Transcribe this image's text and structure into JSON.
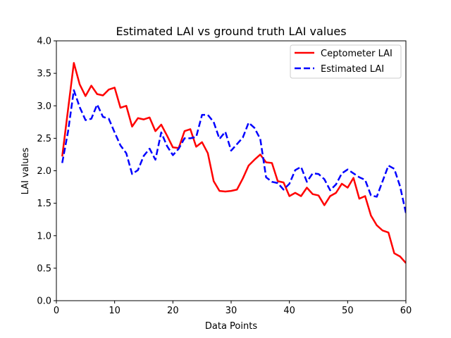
{
  "chart_data": {
    "type": "line",
    "title": "Estimated LAI vs ground truth LAI values",
    "xlabel": "Data Points",
    "ylabel": "LAI values",
    "xlim": [
      0,
      60
    ],
    "ylim": [
      0.0,
      4.0
    ],
    "xticks": [
      "0",
      "10",
      "20",
      "30",
      "40",
      "50",
      "60"
    ],
    "yticks": [
      "0.0",
      "0.5",
      "1.0",
      "1.5",
      "2.0",
      "2.5",
      "3.0",
      "3.5",
      "4.0"
    ],
    "grid": false,
    "legend_position": "top-right",
    "x": [
      1,
      2,
      3,
      4,
      5,
      6,
      7,
      8,
      9,
      10,
      11,
      12,
      13,
      14,
      15,
      16,
      17,
      18,
      19,
      20,
      21,
      22,
      23,
      24,
      25,
      26,
      27,
      28,
      29,
      30,
      31,
      32,
      33,
      34,
      35,
      36,
      37,
      38,
      39,
      40,
      41,
      42,
      43,
      44,
      45,
      46,
      47,
      48,
      49,
      50,
      51,
      52,
      53,
      54,
      55,
      56,
      57,
      58,
      59,
      60
    ],
    "series": [
      {
        "name": "Ceptometer LAI",
        "color": "#ff0000",
        "style": "solid",
        "values": [
          2.22,
          2.94,
          3.66,
          3.33,
          3.15,
          3.31,
          3.18,
          3.16,
          3.25,
          3.28,
          2.97,
          3.0,
          2.68,
          2.81,
          2.79,
          2.82,
          2.61,
          2.71,
          2.54,
          2.36,
          2.35,
          2.61,
          2.64,
          2.37,
          2.44,
          2.27,
          1.84,
          1.69,
          1.68,
          1.69,
          1.71,
          1.88,
          2.08,
          2.17,
          2.25,
          2.13,
          2.12,
          1.84,
          1.82,
          1.61,
          1.66,
          1.61,
          1.74,
          1.64,
          1.62,
          1.47,
          1.61,
          1.66,
          1.8,
          1.74,
          1.89,
          1.57,
          1.61,
          1.31,
          1.16,
          1.08,
          1.05,
          0.73,
          0.68,
          0.58
        ]
      },
      {
        "name": "Estimated LAI",
        "color": "#0000ff",
        "style": "dashed",
        "values": [
          2.12,
          2.6,
          3.24,
          2.98,
          2.78,
          2.8,
          3.02,
          2.83,
          2.8,
          2.59,
          2.39,
          2.27,
          1.95,
          2.01,
          2.23,
          2.34,
          2.17,
          2.59,
          2.38,
          2.24,
          2.34,
          2.5,
          2.5,
          2.52,
          2.86,
          2.86,
          2.75,
          2.49,
          2.6,
          2.31,
          2.41,
          2.51,
          2.74,
          2.66,
          2.49,
          1.9,
          1.83,
          1.81,
          1.71,
          1.8,
          2.01,
          2.06,
          1.83,
          1.96,
          1.95,
          1.87,
          1.7,
          1.79,
          1.96,
          2.02,
          1.96,
          1.9,
          1.86,
          1.62,
          1.6,
          1.84,
          2.08,
          2.03,
          1.76,
          1.35
        ]
      }
    ]
  }
}
